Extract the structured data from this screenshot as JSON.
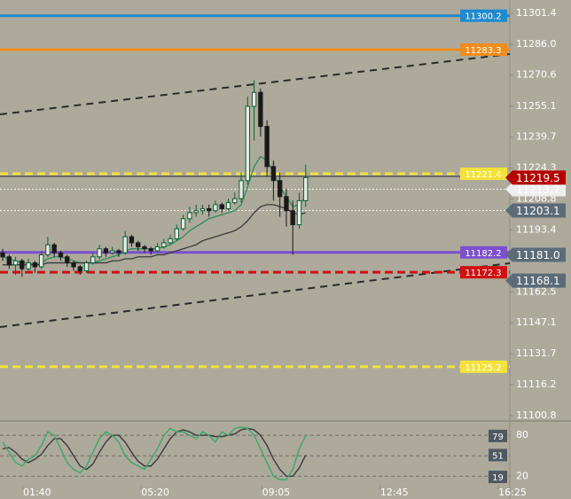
{
  "chart_data": {
    "type": "candlestick",
    "x": [
      36,
      48,
      60,
      72,
      84,
      96,
      108,
      120,
      132,
      144,
      156,
      168,
      180,
      192,
      204,
      216,
      228,
      240,
      252,
      264,
      276,
      288,
      300,
      312,
      324,
      336,
      348,
      360,
      372,
      384,
      396,
      408,
      420,
      432,
      444,
      456,
      468,
      480,
      492,
      504,
      516,
      528,
      540,
      552,
      564,
      576,
      588,
      600
    ],
    "open": [
      11182,
      11180,
      11176,
      11178,
      11174,
      11177,
      11175,
      11181,
      11186,
      11182,
      11180,
      11177,
      11175,
      11173,
      11177,
      11180,
      11184,
      11182,
      11183,
      11182,
      11190,
      11187,
      11185,
      11184,
      11183,
      11185,
      11187,
      11189,
      11194,
      11199,
      11202,
      11203,
      11204,
      11203,
      11206,
      11204,
      11207,
      11209,
      11218,
      11255,
      11262,
      11245,
      11225,
      11218,
      11210,
      11203,
      11196,
      11208
    ],
    "high": [
      11184,
      11181,
      11180,
      11179,
      11179,
      11178,
      11183,
      11190,
      11187,
      11183,
      11181,
      11178,
      11176,
      11178,
      11182,
      11186,
      11185,
      11185,
      11184,
      11193,
      11191,
      11188,
      11186,
      11185,
      11187,
      11189,
      11191,
      11196,
      11201,
      11205,
      11206,
      11206,
      11206,
      11208,
      11207,
      11209,
      11212,
      11222,
      11260,
      11268,
      11264,
      11248,
      11228,
      11222,
      11214,
      11208,
      11212,
      11226
    ],
    "low": [
      11178,
      11174,
      11171,
      11170,
      11173,
      11172,
      11174,
      11180,
      11180,
      11178,
      11175,
      11173,
      11171,
      11172,
      11176,
      11179,
      11180,
      11181,
      11180,
      11181,
      11185,
      11183,
      11182,
      11181,
      11182,
      11184,
      11186,
      11188,
      11193,
      11197,
      11200,
      11201,
      11200,
      11202,
      11202,
      11203,
      11206,
      11207,
      11216,
      11238,
      11240,
      11220,
      11208,
      11200,
      11195,
      11181,
      11194,
      11205
    ],
    "close": [
      11180,
      11176,
      11178,
      11174,
      11177,
      11175,
      11181,
      11186,
      11182,
      11180,
      11177,
      11175,
      11173,
      11177,
      11180,
      11184,
      11182,
      11183,
      11182,
      11190,
      11187,
      11185,
      11184,
      11183,
      11185,
      11187,
      11189,
      11194,
      11199,
      11202,
      11203,
      11204,
      11203,
      11206,
      11204,
      11207,
      11209,
      11218,
      11255,
      11262,
      11245,
      11225,
      11218,
      11210,
      11203,
      11196,
      11208,
      11219.5
    ],
    "up_color": "#0e5e34",
    "down_color": "#1a1a1a",
    "ma_lines": [
      {
        "color": "#2e8b57",
        "values": [
          11180,
          11179,
          11178,
          11177,
          11177,
          11176,
          11177,
          11179,
          11180,
          11180,
          11179,
          11178,
          11177,
          11177,
          11177,
          11178,
          11179,
          11180,
          11181,
          11183,
          11184,
          11184,
          11184,
          11184,
          11184,
          11185,
          11186,
          11188,
          11190,
          11193,
          11195,
          11197,
          11199,
          11200,
          11201,
          11202,
          11203,
          11206,
          11215,
          11225,
          11230,
          11228,
          11222,
          11215,
          11210,
          11205,
          11206,
          11210
        ]
      },
      {
        "color": "#3a3a3a",
        "values": [
          11176,
          11176,
          11176,
          11176,
          11176,
          11176,
          11176,
          11177,
          11177,
          11177,
          11177,
          11177,
          11177,
          11177,
          11177,
          11177,
          11177,
          11178,
          11178,
          11179,
          11179,
          11180,
          11180,
          11180,
          11181,
          11181,
          11182,
          11183,
          11184,
          11185,
          11186,
          11188,
          11189,
          11190,
          11191,
          11192,
          11193,
          11195,
          11198,
          11202,
          11205,
          11206,
          11206,
          11205,
          11204,
          11202,
          11201,
          11202
        ]
      }
    ],
    "xlim": [
      31,
      980
    ],
    "xticks": [
      {
        "value": 100,
        "label": "01:40"
      },
      {
        "value": 320,
        "label": "05:20"
      },
      {
        "value": 545,
        "label": "09:05"
      },
      {
        "value": 765,
        "label": "12:45"
      },
      {
        "value": 985,
        "label": "16:25"
      }
    ],
    "ylim": [
      11100.8,
      11301.4
    ],
    "yticks": [
      11301.4,
      {
        "value": 11286,
        "label": "11286.0"
      },
      11270.6,
      11255.1,
      11239.7,
      11224.3,
      11208.8,
      11193.4,
      11162.5,
      11147.1,
      11131.7,
      11116.2,
      11100.8
    ],
    "levels": [
      {
        "value": 11300.2,
        "color": "#1f8ad0",
        "text_color": "#ffffff",
        "dashed": false
      },
      {
        "value": 11283.3,
        "color": "#f28c1a",
        "text_color": "#5a3000",
        "dashed": false
      },
      {
        "value": 11221.4,
        "color": "#f2e23a",
        "text_color": "#333333",
        "dashed": true
      },
      {
        "value": 11182.2,
        "color": "#7b4fd0",
        "text_color": "#ffffff",
        "dashed": false
      },
      {
        "value": 11172.3,
        "color": "#d01010",
        "text_color": "#ffffff",
        "dashed": true
      },
      {
        "value": 11125.2,
        "color": "#f2e23a",
        "text_color": "#333333",
        "dashed": true
      }
    ],
    "trendlines": [
      {
        "x": [
          31,
          980
        ],
        "y": [
          11251,
          11281.1
        ]
      },
      {
        "x": [
          31,
          980
        ],
        "y": [
          11145,
          11176.8
        ]
      }
    ],
    "tags": [
      {
        "value": 11213.7,
        "color": "#eeeeee",
        "text_color": "#555555"
      },
      {
        "value": 11203.1,
        "color": "#5b6b78",
        "text_color": "#ffffff"
      },
      {
        "value": 11181,
        "label": "11181.0",
        "color": "#5b6b78",
        "text_color": "#ffffff"
      },
      {
        "value": 11168.1,
        "color": "#5b6b78",
        "text_color": "#ffffff"
      },
      {
        "value": 11219.5,
        "color": "#b30000",
        "text_color": "#ffffff"
      }
    ],
    "stochastic": {
      "ylim": [
        10,
        97
      ],
      "yticks": [
        80,
        20
      ],
      "levels": [
        80,
        50,
        20
      ],
      "k": {
        "color": "#3aa86a",
        "values": [
          70,
          55,
          40,
          35,
          45,
          50,
          65,
          85,
          80,
          60,
          40,
          30,
          25,
          35,
          55,
          75,
          85,
          80,
          70,
          50,
          40,
          35,
          30,
          45,
          60,
          80,
          90,
          85,
          85,
          80,
          75,
          85,
          80,
          70,
          85,
          80,
          90,
          92,
          90,
          80,
          60,
          40,
          20,
          15,
          15,
          30,
          60,
          79
        ]
      },
      "d": {
        "color": "#3a3a3a",
        "values": [
          60,
          62,
          55,
          45,
          40,
          45,
          52,
          65,
          75,
          75,
          65,
          50,
          35,
          30,
          38,
          55,
          70,
          80,
          80,
          70,
          55,
          42,
          35,
          35,
          45,
          60,
          75,
          85,
          88,
          85,
          80,
          80,
          80,
          78,
          78,
          80,
          82,
          88,
          90,
          88,
          80,
          65,
          45,
          30,
          20,
          20,
          32,
          51
        ]
      },
      "tags": [
        79,
        51,
        19
      ]
    }
  }
}
